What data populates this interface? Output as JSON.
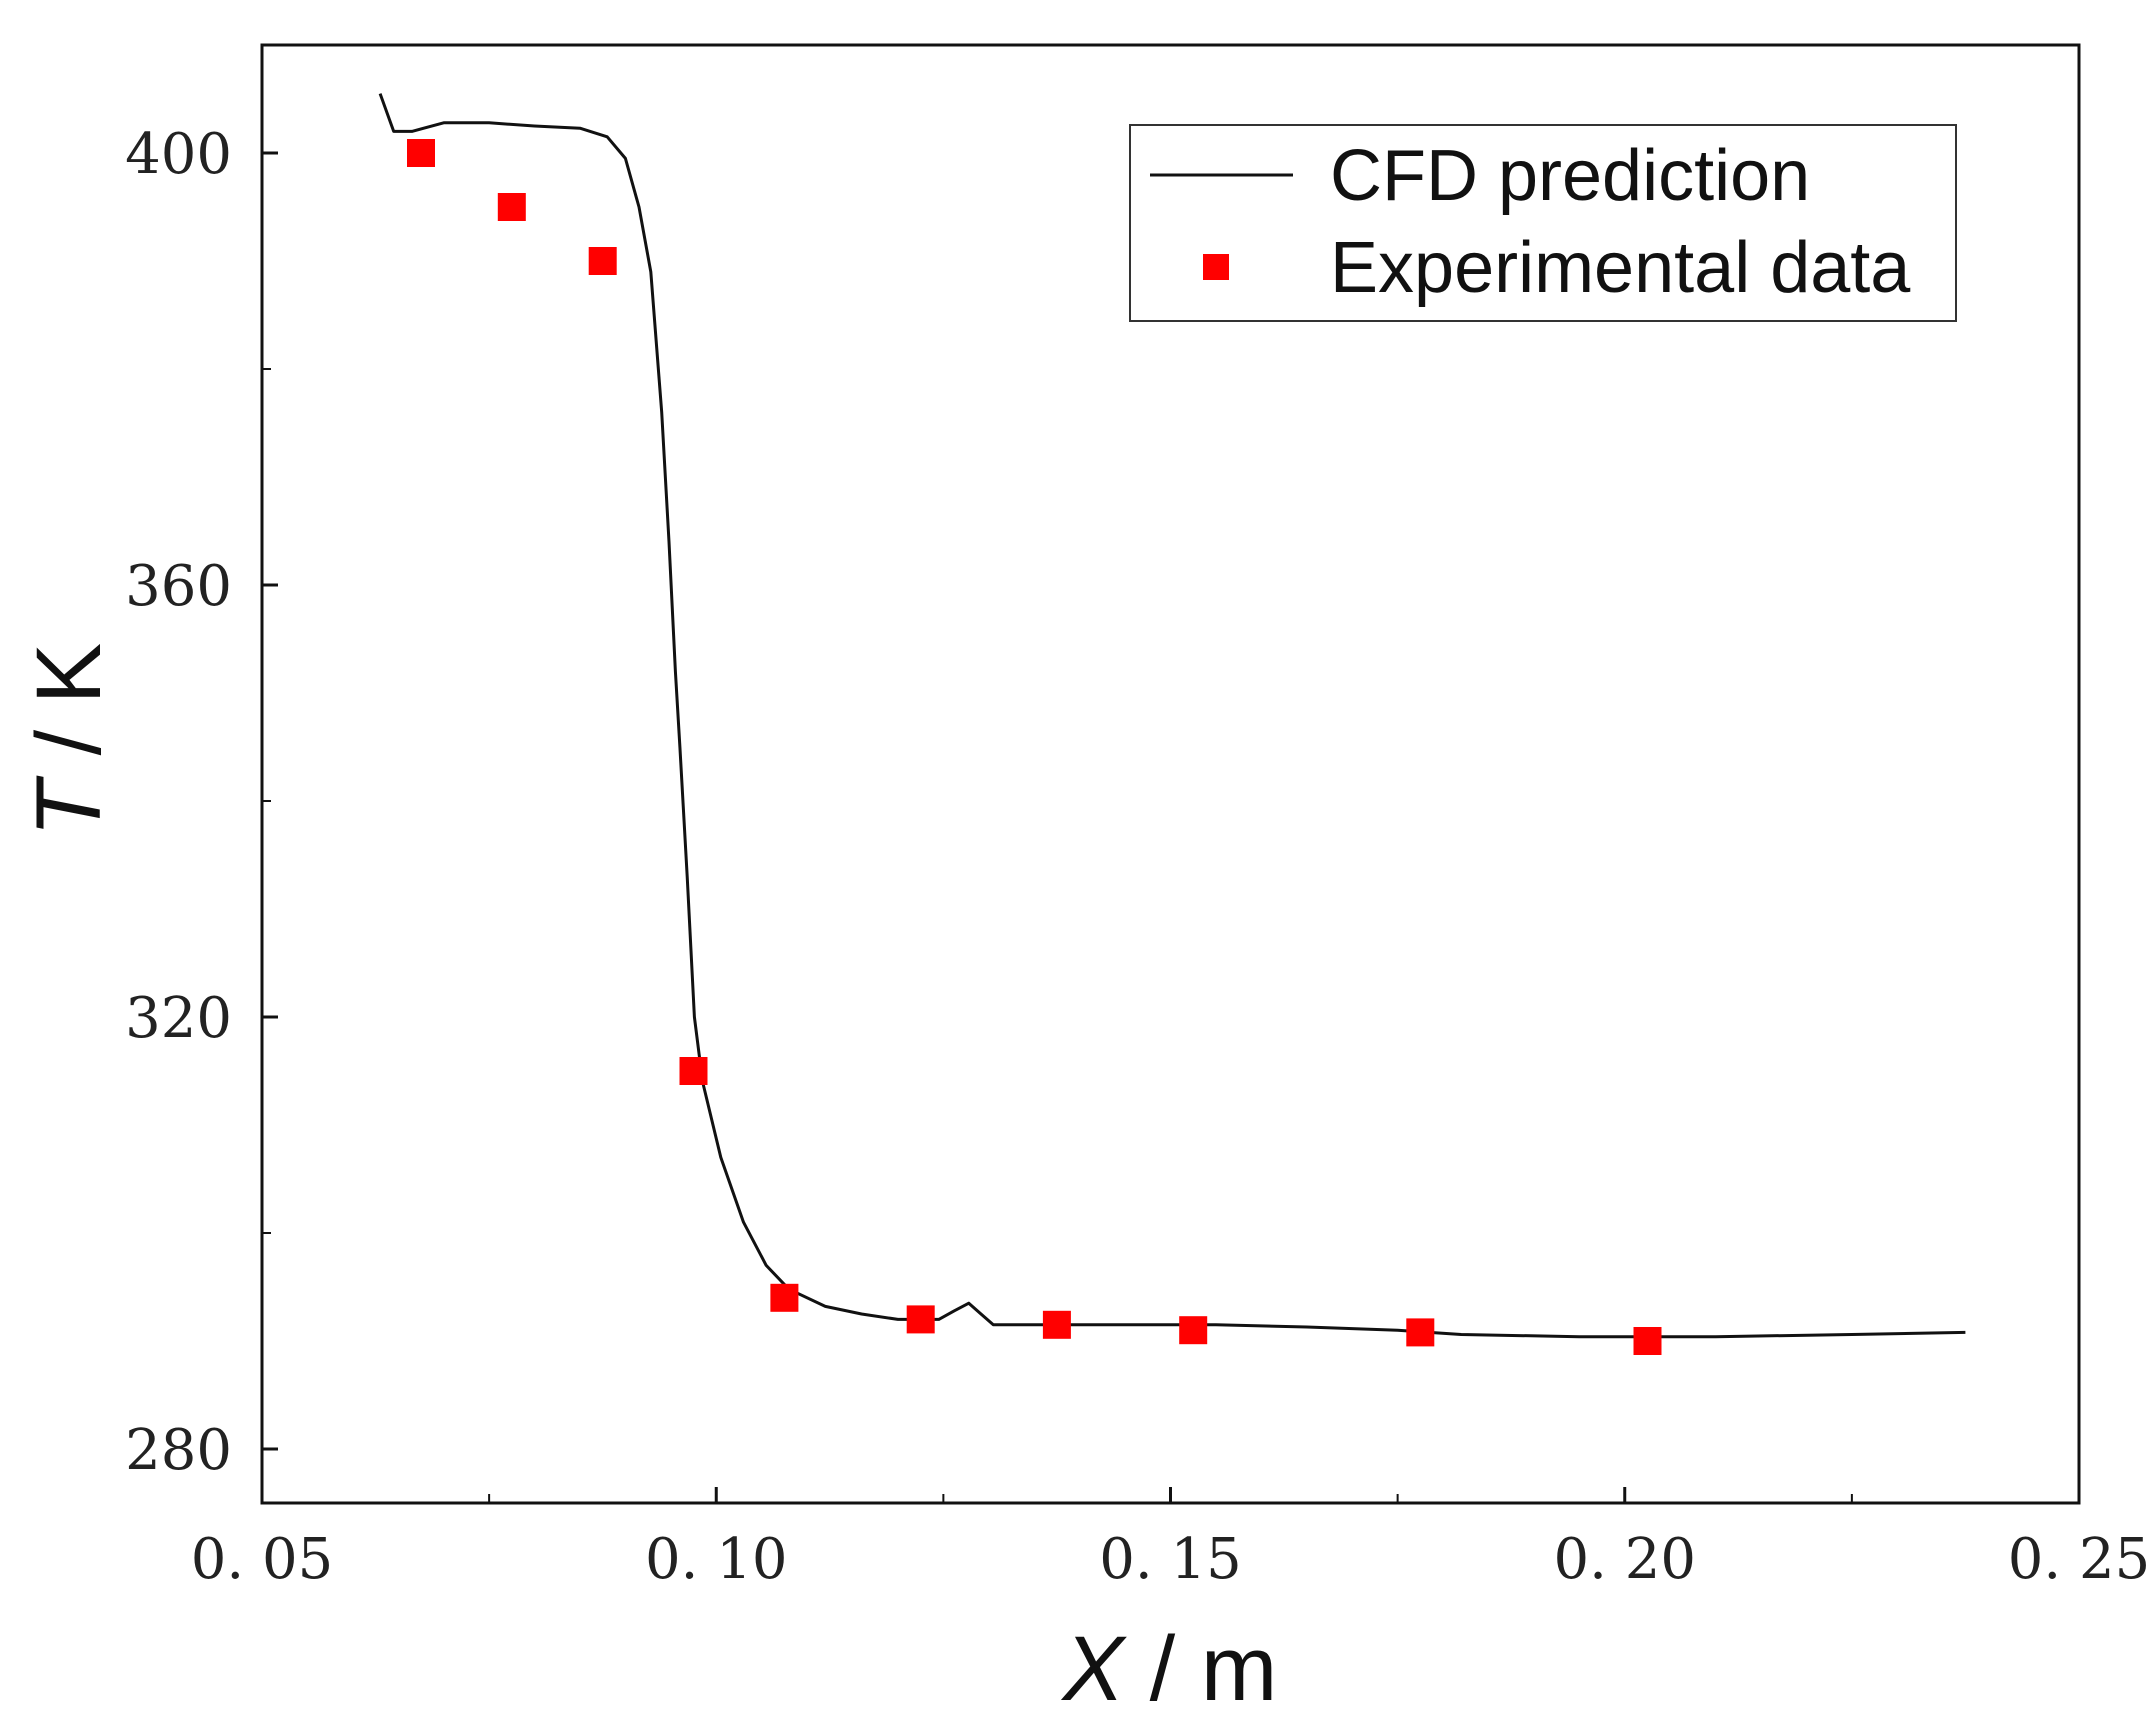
{
  "chart_data": {
    "type": "line",
    "xlabel_var": "X",
    "xlabel_unit": " / m",
    "ylabel_var": "T",
    "ylabel_unit": " / K",
    "xlim": [
      0.05,
      0.25
    ],
    "ylim": [
      275,
      410
    ],
    "xticks": [
      0.05,
      0.1,
      0.15,
      0.2,
      0.25
    ],
    "xtick_labels": [
      "0. 05",
      "0. 10",
      "0. 15",
      "0. 20",
      "0. 25"
    ],
    "xminor": [
      0.075,
      0.125,
      0.175,
      0.225
    ],
    "yticks": [
      280,
      320,
      360,
      400
    ],
    "ytick_labels": [
      "280",
      "320",
      "360",
      "400"
    ],
    "yminor": [
      300,
      340,
      380
    ],
    "grid": false,
    "legend_position": "top-right",
    "series": [
      {
        "name": "CFD prediction",
        "style": "line",
        "color": "#111111",
        "x": [
          0.063,
          0.0645,
          0.0665,
          0.07,
          0.075,
          0.08,
          0.085,
          0.088,
          0.09,
          0.0915,
          0.0928,
          0.094,
          0.0948,
          0.0955,
          0.096,
          0.0968,
          0.0976,
          0.0985,
          0.1005,
          0.103,
          0.1055,
          0.108,
          0.112,
          0.116,
          0.12,
          0.1245,
          0.1262,
          0.1278,
          0.129,
          0.1305,
          0.135,
          0.145,
          0.155,
          0.165,
          0.175,
          0.182,
          0.195,
          0.21,
          0.225,
          0.2375
        ],
        "y": [
          405.5,
          402.0,
          402.0,
          402.8,
          402.8,
          402.5,
          402.3,
          401.5,
          399.5,
          395.0,
          389.0,
          376.0,
          364.0,
          352.0,
          345.0,
          333.0,
          320.0,
          314.0,
          307.0,
          301.0,
          297.0,
          294.8,
          293.2,
          292.5,
          292.0,
          292.0,
          292.8,
          293.5,
          292.6,
          291.5,
          291.5,
          291.5,
          291.5,
          291.3,
          291.0,
          290.6,
          290.4,
          290.4,
          290.6,
          290.8
        ]
      },
      {
        "name": "Experimental data",
        "style": "markers",
        "color": "#ff0000",
        "x": [
          0.0675,
          0.0775,
          0.0875,
          0.0975,
          0.1075,
          0.1225,
          0.1375,
          0.1525,
          0.1775,
          0.2025
        ],
        "y": [
          400.0,
          395.0,
          390.0,
          315.0,
          294.0,
          292.0,
          291.5,
          291.0,
          290.8,
          290.0
        ]
      }
    ]
  }
}
